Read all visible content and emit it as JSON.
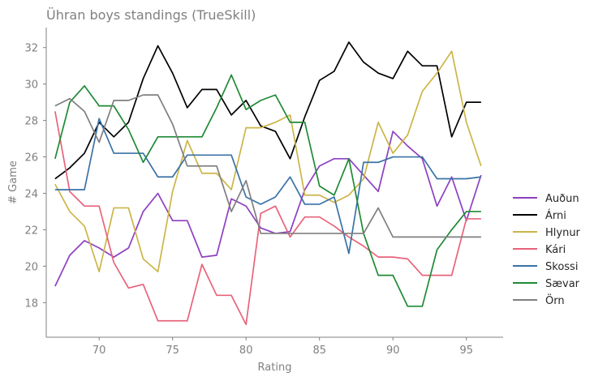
{
  "chart_data": {
    "type": "line",
    "title": "Ühran boys standings (TrueSkill)",
    "xlabel": "Rating",
    "ylabel": "# Game",
    "xlim": [
      66.4,
      97.5
    ],
    "ylim": [
      16.1,
      33.1
    ],
    "x_ticks": [
      70,
      75,
      80,
      85,
      90,
      95
    ],
    "y_ticks": [
      18,
      20,
      22,
      24,
      26,
      28,
      30,
      32
    ],
    "grid": false,
    "legend_position": "right",
    "x": [
      67,
      68,
      69,
      70,
      71,
      72,
      73,
      74,
      75,
      76,
      77,
      78,
      79,
      80,
      81,
      82,
      83,
      84,
      85,
      86,
      87,
      88,
      89,
      90,
      91,
      92,
      93,
      94,
      95,
      96
    ],
    "series": [
      {
        "name": "Auðun",
        "color": "#8e3fc2",
        "values": [
          18.9,
          20.6,
          21.4,
          21.0,
          20.5,
          21.0,
          23.0,
          24.0,
          22.5,
          22.5,
          20.5,
          20.6,
          23.7,
          23.3,
          22.1,
          21.8,
          21.9,
          24.2,
          25.5,
          25.9,
          25.9,
          25.0,
          24.1,
          27.4,
          26.6,
          25.9,
          23.3,
          24.9,
          22.5,
          25.0
        ]
      },
      {
        "name": "Árni",
        "color": "#000000",
        "values": [
          24.8,
          25.4,
          26.2,
          27.9,
          27.1,
          27.9,
          30.3,
          32.1,
          30.6,
          28.7,
          29.7,
          29.7,
          28.3,
          29.1,
          27.7,
          27.4,
          25.9,
          28.2,
          30.2,
          30.7,
          32.3,
          31.2,
          30.6,
          30.3,
          31.8,
          31.0,
          31.0,
          27.1,
          29.0,
          29.0
        ]
      },
      {
        "name": "Hlynur",
        "color": "#ccb547",
        "values": [
          24.5,
          23.0,
          22.2,
          19.7,
          23.2,
          23.2,
          20.4,
          19.7,
          24.1,
          26.9,
          25.1,
          25.1,
          24.2,
          27.6,
          27.6,
          27.9,
          28.3,
          23.9,
          23.9,
          23.5,
          23.9,
          24.8,
          27.9,
          26.2,
          27.2,
          29.6,
          30.6,
          31.8,
          27.9,
          25.5
        ]
      },
      {
        "name": "Kári",
        "color": "#e8637a",
        "values": [
          28.5,
          24.1,
          23.3,
          23.3,
          20.2,
          18.8,
          19.0,
          17.0,
          17.0,
          17.0,
          20.1,
          18.4,
          18.4,
          16.8,
          22.9,
          23.3,
          21.6,
          22.7,
          22.7,
          22.2,
          21.6,
          21.1,
          20.5,
          20.5,
          20.4,
          19.5,
          19.5,
          19.5,
          22.6,
          22.6
        ]
      },
      {
        "name": "Skossi",
        "color": "#3a72a6",
        "values": [
          24.2,
          24.2,
          24.2,
          28.1,
          26.2,
          26.2,
          26.2,
          24.9,
          24.9,
          26.1,
          26.1,
          26.1,
          26.1,
          23.8,
          23.4,
          23.8,
          24.9,
          23.4,
          23.4,
          23.8,
          20.7,
          25.7,
          25.7,
          26.0,
          26.0,
          26.0,
          24.8,
          24.8,
          24.8,
          24.9
        ]
      },
      {
        "name": "Sævar",
        "color": "#1f8a35",
        "values": [
          25.9,
          29.0,
          29.9,
          28.8,
          28.8,
          27.5,
          25.7,
          27.1,
          27.1,
          27.1,
          27.1,
          28.7,
          30.5,
          28.6,
          29.1,
          29.4,
          27.9,
          27.9,
          24.4,
          23.9,
          25.9,
          21.8,
          19.5,
          19.5,
          17.8,
          17.8,
          20.9,
          22.0,
          23.0,
          23.0
        ]
      },
      {
        "name": "Örn",
        "color": "#7f7f7f",
        "values": [
          28.8,
          29.2,
          28.5,
          26.8,
          29.1,
          29.1,
          29.4,
          29.4,
          27.8,
          25.5,
          25.5,
          25.5,
          23.0,
          24.7,
          21.8,
          21.8,
          21.8,
          21.8,
          21.8,
          21.8,
          21.8,
          21.8,
          23.2,
          21.6,
          21.6,
          21.6,
          21.6,
          21.6,
          21.6,
          21.6
        ]
      }
    ]
  }
}
